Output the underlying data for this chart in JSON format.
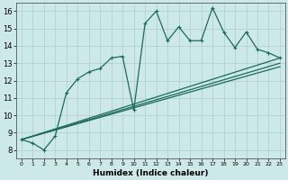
{
  "xlabel": "Humidex (Indice chaleur)",
  "background_color": "#cce8e8",
  "grid_color": "#b0cccc",
  "line_color": "#1a6b5a",
  "xlim": [
    -0.5,
    23.5
  ],
  "ylim": [
    7.5,
    16.5
  ],
  "xticks": [
    0,
    1,
    2,
    3,
    4,
    5,
    6,
    7,
    8,
    9,
    10,
    11,
    12,
    13,
    14,
    15,
    16,
    17,
    18,
    19,
    20,
    21,
    22,
    23
  ],
  "yticks": [
    8,
    9,
    10,
    11,
    12,
    13,
    14,
    15,
    16
  ],
  "jagged_x": [
    0,
    1,
    2,
    3,
    4,
    5,
    6,
    7,
    8,
    9,
    10,
    11,
    12,
    13,
    14,
    15,
    16,
    17,
    18,
    19,
    20,
    21,
    22,
    23
  ],
  "jagged_y": [
    8.6,
    8.4,
    8.0,
    8.8,
    11.3,
    12.1,
    12.5,
    12.7,
    13.3,
    13.4,
    10.3,
    15.3,
    16.0,
    14.3,
    15.1,
    14.3,
    14.3,
    16.2,
    14.8,
    13.9,
    14.8,
    13.8,
    13.6,
    13.3
  ],
  "straight_lines": [
    {
      "x0": 0,
      "y0": 8.6,
      "x1": 23,
      "y1": 13.3
    },
    {
      "x0": 0,
      "y0": 8.6,
      "x1": 23,
      "y1": 12.8
    },
    {
      "x0": 0,
      "y0": 8.6,
      "x1": 23,
      "y1": 13.0
    }
  ],
  "marker": "+",
  "markersize": 3,
  "linewidth": 0.9
}
